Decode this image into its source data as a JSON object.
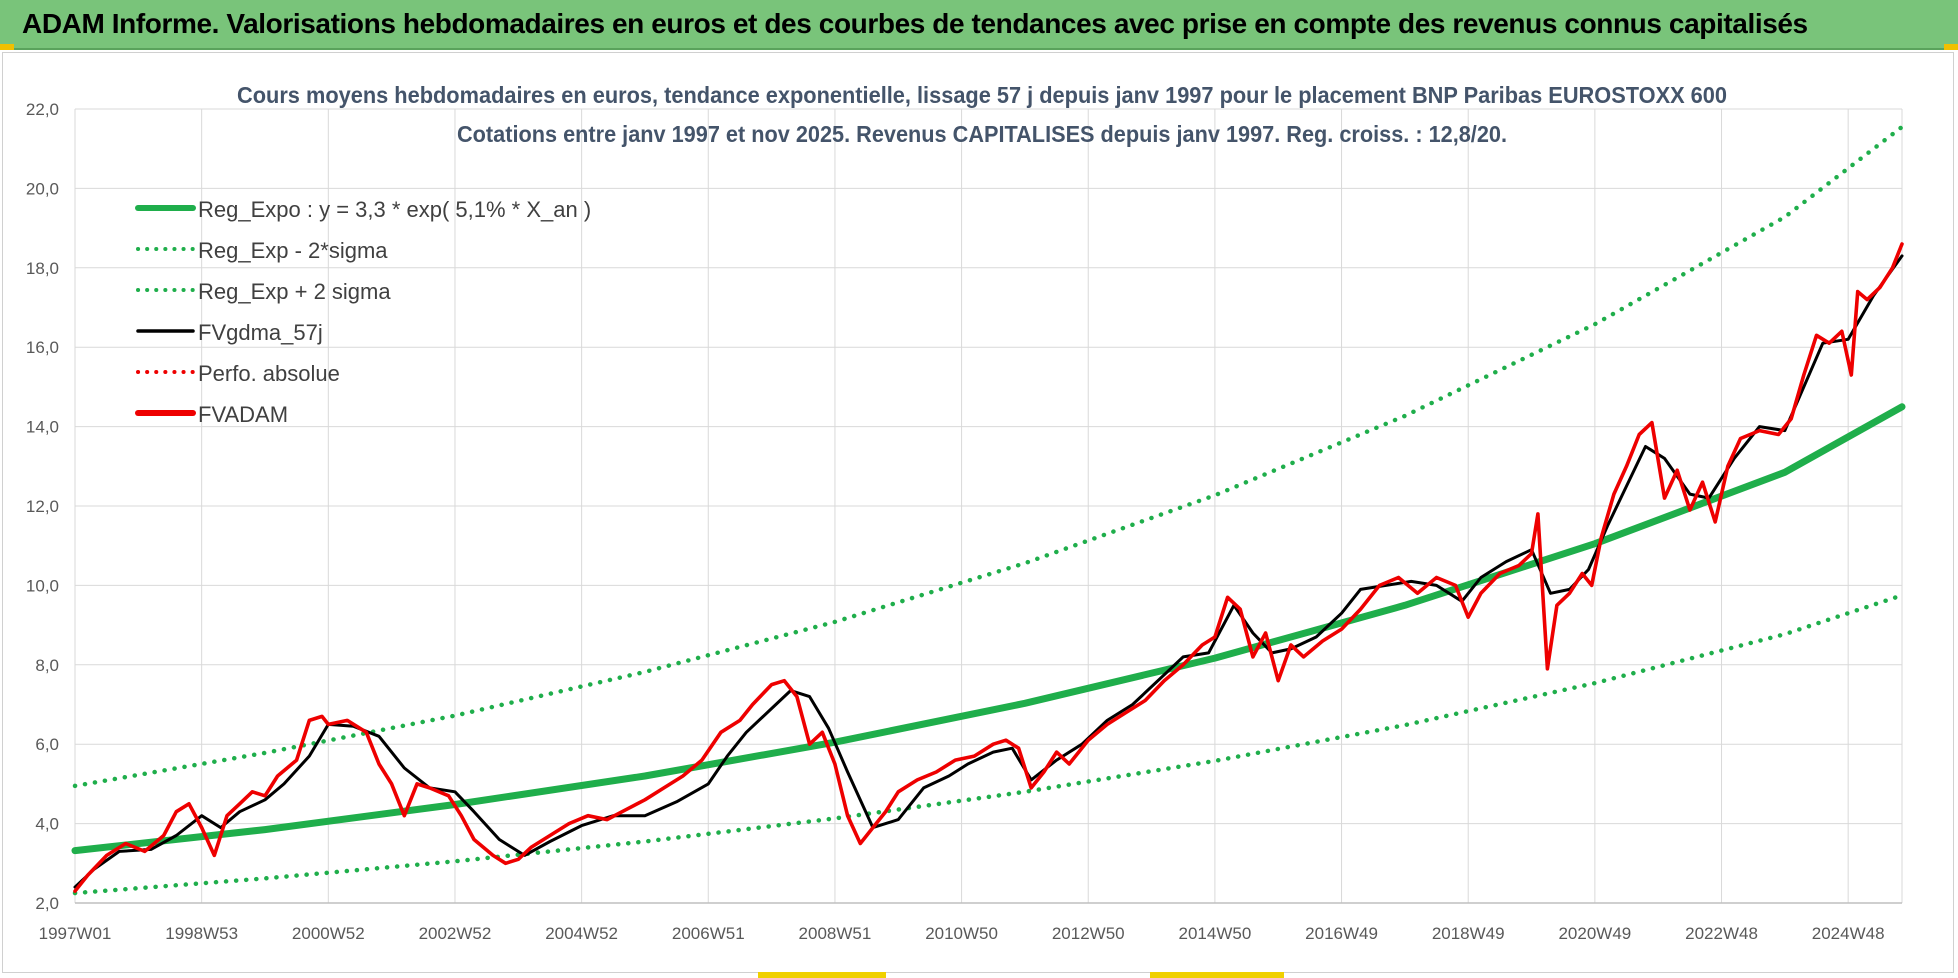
{
  "banner": {
    "title": "ADAM Informe. Valorisations hebdomadaires en euros et des courbes de tendances avec prise en compte des revenus connus capitalisés"
  },
  "colors": {
    "banner_bg": "#79c47a",
    "trend_green": "#1fae4b",
    "fv_black": "#000000",
    "adam_red": "#ee0000",
    "grid": "#d9d9d9"
  },
  "chart_data": {
    "type": "line",
    "title": "Cours moyens hebdomadaires en euros, tendance exponentielle, lissage 57 j depuis janv 1997  pour le placement BNP Paribas EUROSTOXX 600",
    "subtitle": "Cotations entre janv 1997 et nov 2025. Revenus CAPITALISES depuis janv 1997. Reg. croiss. : 12,8/20.",
    "xlabel": "",
    "ylabel": "",
    "ylim": [
      2.0,
      22.0
    ],
    "xlim": [
      1997.0,
      2025.85
    ],
    "y_ticks": [
      "2,0",
      "4,0",
      "6,0",
      "8,0",
      "10,0",
      "12,0",
      "14,0",
      "16,0",
      "18,0",
      "20,0",
      "22,0"
    ],
    "x_ticks": [
      {
        "label": "1997W01",
        "x": 1997.0
      },
      {
        "label": "1998W53",
        "x": 1999.0
      },
      {
        "label": "2000W52",
        "x": 2001.0
      },
      {
        "label": "2002W52",
        "x": 2003.0
      },
      {
        "label": "2004W52",
        "x": 2005.0
      },
      {
        "label": "2006W51",
        "x": 2007.0
      },
      {
        "label": "2008W51",
        "x": 2009.0
      },
      {
        "label": "2010W50",
        "x": 2011.0
      },
      {
        "label": "2012W50",
        "x": 2013.0
      },
      {
        "label": "2014W50",
        "x": 2015.0
      },
      {
        "label": "2016W49",
        "x": 2017.0
      },
      {
        "label": "2018W49",
        "x": 2019.0
      },
      {
        "label": "2020W49",
        "x": 2021.0
      },
      {
        "label": "2022W48",
        "x": 2023.0
      },
      {
        "label": "2024W48",
        "x": 2025.0
      }
    ],
    "grid": true,
    "legend_position": "top-left",
    "series": [
      {
        "name": "Reg_Expo : y = 3,3 * exp( 5,1% *  X_an )",
        "style": "solid-thick",
        "color": "#1fae4b",
        "x": [
          1997.0,
          2000.0,
          2003.0,
          2006.0,
          2009.0,
          2012.0,
          2015.0,
          2018.0,
          2021.0,
          2024.0,
          2025.85
        ],
        "values": [
          3.32,
          3.85,
          4.48,
          5.2,
          6.05,
          7.03,
          8.17,
          9.5,
          11.05,
          12.85,
          14.5
        ]
      },
      {
        "name": "Reg_Exp - 2*sigma",
        "style": "dotted",
        "color": "#1fae4b",
        "x": [
          1997.0,
          2000.0,
          2003.0,
          2006.0,
          2009.0,
          2012.0,
          2015.0,
          2018.0,
          2021.0,
          2024.0,
          2025.85
        ],
        "values": [
          2.25,
          2.62,
          3.05,
          3.55,
          4.13,
          4.8,
          5.58,
          6.48,
          7.54,
          8.77,
          9.75
        ]
      },
      {
        "name": "Reg_Exp + 2 sigma",
        "style": "dotted",
        "color": "#1fae4b",
        "x": [
          1997.0,
          2000.0,
          2003.0,
          2006.0,
          2009.0,
          2012.0,
          2015.0,
          2018.0,
          2021.0,
          2024.0,
          2025.85
        ],
        "values": [
          4.95,
          5.78,
          6.72,
          7.82,
          9.08,
          10.56,
          12.27,
          14.27,
          16.58,
          19.28,
          21.55
        ]
      },
      {
        "name": "FVgdma_57j",
        "style": "solid",
        "color": "#000000",
        "x": [
          1997.0,
          1997.3,
          1997.7,
          1998.2,
          1998.6,
          1999.0,
          1999.3,
          1999.6,
          2000.0,
          2000.3,
          2000.7,
          2001.0,
          2001.4,
          2001.8,
          2002.2,
          2002.6,
          2003.0,
          2003.3,
          2003.7,
          2004.1,
          2004.5,
          2005.0,
          2005.5,
          2006.0,
          2006.5,
          2007.0,
          2007.3,
          2007.6,
          2008.0,
          2008.3,
          2008.6,
          2008.9,
          2009.2,
          2009.6,
          2010.0,
          2010.4,
          2010.8,
          2011.1,
          2011.5,
          2011.8,
          2012.1,
          2012.5,
          2012.9,
          2013.3,
          2013.7,
          2014.1,
          2014.5,
          2014.9,
          2015.3,
          2015.6,
          2015.9,
          2016.2,
          2016.6,
          2017.0,
          2017.3,
          2017.7,
          2018.1,
          2018.5,
          2018.9,
          2019.2,
          2019.6,
          2020.0,
          2020.3,
          2020.6,
          2020.9,
          2021.2,
          2021.5,
          2021.8,
          2022.1,
          2022.5,
          2022.8,
          2023.2,
          2023.6,
          2024.0,
          2024.3,
          2024.6,
          2025.0,
          2025.4,
          2025.85
        ],
        "values": [
          2.4,
          2.85,
          3.3,
          3.35,
          3.7,
          4.2,
          3.9,
          4.3,
          4.6,
          5.0,
          5.7,
          6.5,
          6.45,
          6.2,
          5.4,
          4.9,
          4.8,
          4.3,
          3.6,
          3.2,
          3.55,
          3.95,
          4.2,
          4.2,
          4.55,
          5.0,
          5.7,
          6.3,
          6.9,
          7.35,
          7.2,
          6.4,
          5.3,
          3.9,
          4.1,
          4.9,
          5.2,
          5.5,
          5.8,
          5.9,
          5.1,
          5.6,
          6.0,
          6.6,
          7.0,
          7.6,
          8.2,
          8.3,
          9.5,
          8.8,
          8.3,
          8.4,
          8.7,
          9.3,
          9.9,
          10.0,
          10.1,
          10.0,
          9.6,
          10.2,
          10.6,
          10.9,
          9.8,
          9.9,
          10.4,
          11.5,
          12.5,
          13.5,
          13.2,
          12.3,
          12.2,
          13.2,
          14.0,
          13.9,
          15.0,
          16.1,
          16.2,
          17.3,
          18.3
        ]
      },
      {
        "name": "Perfo. absolue",
        "style": "dotted",
        "color": "#ee0000",
        "x": [],
        "values": []
      },
      {
        "name": "FVADAM",
        "style": "solid-thick",
        "color": "#ee0000",
        "x": [
          1997.0,
          1997.2,
          1997.5,
          1997.8,
          1998.1,
          1998.4,
          1998.6,
          1998.8,
          1999.0,
          1999.2,
          1999.4,
          1999.6,
          1999.8,
          2000.0,
          2000.2,
          2000.5,
          2000.7,
          2000.9,
          2001.0,
          2001.3,
          2001.6,
          2001.8,
          2002.0,
          2002.2,
          2002.4,
          2002.6,
          2002.9,
          2003.1,
          2003.3,
          2003.6,
          2003.8,
          2004.0,
          2004.2,
          2004.5,
          2004.8,
          2005.1,
          2005.4,
          2005.7,
          2006.0,
          2006.3,
          2006.6,
          2006.9,
          2007.2,
          2007.5,
          2007.7,
          2008.0,
          2008.2,
          2008.4,
          2008.6,
          2008.8,
          2009.0,
          2009.2,
          2009.4,
          2009.6,
          2009.8,
          2010.0,
          2010.3,
          2010.6,
          2010.9,
          2011.2,
          2011.5,
          2011.7,
          2011.9,
          2012.1,
          2012.3,
          2012.5,
          2012.7,
          2013.0,
          2013.3,
          2013.6,
          2013.9,
          2014.2,
          2014.5,
          2014.8,
          2015.0,
          2015.2,
          2015.4,
          2015.6,
          2015.8,
          2016.0,
          2016.2,
          2016.4,
          2016.7,
          2017.0,
          2017.3,
          2017.6,
          2017.9,
          2018.2,
          2018.5,
          2018.8,
          2019.0,
          2019.2,
          2019.5,
          2019.8,
          2020.0,
          2020.1,
          2020.25,
          2020.4,
          2020.6,
          2020.8,
          2020.95,
          2021.1,
          2021.3,
          2021.5,
          2021.7,
          2021.9,
          2022.1,
          2022.3,
          2022.5,
          2022.7,
          2022.9,
          2023.1,
          2023.3,
          2023.6,
          2023.9,
          2024.1,
          2024.3,
          2024.5,
          2024.7,
          2024.9,
          2025.05,
          2025.15,
          2025.3,
          2025.5,
          2025.7,
          2025.85
        ],
        "values": [
          2.3,
          2.7,
          3.2,
          3.5,
          3.3,
          3.7,
          4.3,
          4.5,
          3.9,
          3.2,
          4.2,
          4.5,
          4.8,
          4.7,
          5.2,
          5.6,
          6.6,
          6.7,
          6.5,
          6.6,
          6.3,
          5.5,
          5.0,
          4.2,
          5.0,
          4.9,
          4.7,
          4.2,
          3.6,
          3.2,
          3.0,
          3.1,
          3.4,
          3.7,
          4.0,
          4.2,
          4.1,
          4.35,
          4.6,
          4.9,
          5.2,
          5.6,
          6.3,
          6.6,
          7.0,
          7.5,
          7.6,
          7.2,
          6.0,
          6.3,
          5.5,
          4.2,
          3.5,
          3.9,
          4.3,
          4.8,
          5.1,
          5.3,
          5.6,
          5.7,
          6.0,
          6.1,
          5.9,
          4.9,
          5.3,
          5.8,
          5.5,
          6.1,
          6.5,
          6.8,
          7.1,
          7.6,
          8.0,
          8.5,
          8.7,
          9.7,
          9.4,
          8.2,
          8.8,
          7.6,
          8.5,
          8.2,
          8.6,
          8.9,
          9.4,
          10.0,
          10.2,
          9.8,
          10.2,
          10.0,
          9.2,
          9.8,
          10.3,
          10.5,
          10.8,
          11.8,
          7.9,
          9.5,
          9.8,
          10.3,
          10.0,
          11.2,
          12.3,
          13.0,
          13.8,
          14.1,
          12.2,
          12.9,
          11.9,
          12.6,
          11.6,
          13.0,
          13.7,
          13.9,
          13.8,
          14.2,
          15.3,
          16.3,
          16.1,
          16.4,
          15.3,
          17.4,
          17.2,
          17.5,
          18.0,
          18.6
        ]
      }
    ]
  }
}
